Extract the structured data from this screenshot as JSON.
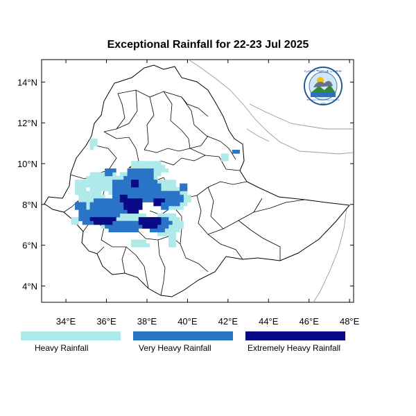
{
  "title": "Exceptional Rainfall for 22-23 Jul 2025",
  "map": {
    "lon_range": [
      32.8,
      48.2
    ],
    "lat_range": [
      3.2,
      15.1
    ],
    "x_ticks": [
      "34°E",
      "36°E",
      "38°E",
      "40°E",
      "42°E",
      "44°E",
      "46°E",
      "48°E"
    ],
    "y_ticks": [
      "4°N",
      "6°N",
      "8°N",
      "10°N",
      "12°N",
      "14°N"
    ],
    "x_tick_values": [
      34,
      36,
      38,
      40,
      42,
      44,
      46,
      48
    ],
    "y_tick_values": [
      4,
      6,
      8,
      10,
      12,
      14
    ]
  },
  "logo": {
    "name": "Ethiopian Meteorology Institute logo",
    "text": "የኢትዮጵያ ሚቲዎሮሎጂ ኢንስቲትዩት",
    "subtext": "Ethiopian Meteorology Institute",
    "year": "1992"
  },
  "legend": [
    {
      "label": "Heavy Rainfall",
      "color": "#aeeaea"
    },
    {
      "label": "Very Heavy Rainfall",
      "color": "#2a74c8"
    },
    {
      "label": "Extremely Heavy Rainfall",
      "color": "#0a0a88"
    }
  ]
}
